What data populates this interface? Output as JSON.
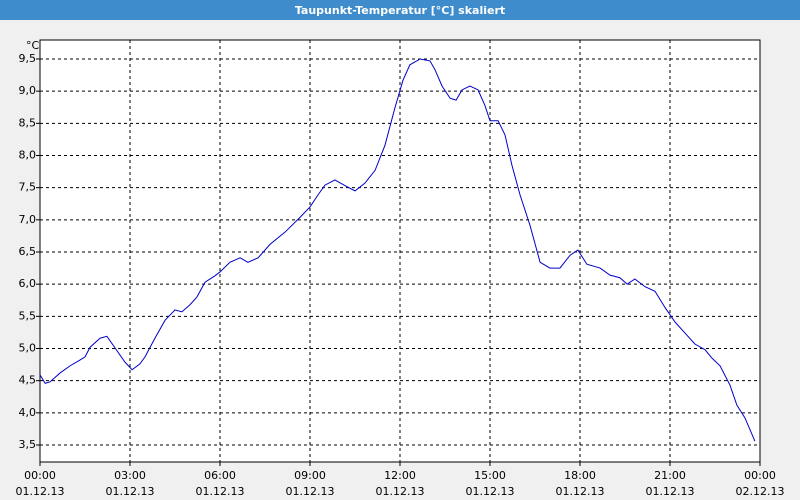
{
  "chart_data": {
    "type": "line",
    "title": "Taupunkt-Temperatur [°C] skaliert",
    "y_unit": "°C",
    "xlim": [
      0,
      24
    ],
    "ylim": [
      3.236,
      9.795
    ],
    "grid": true,
    "xticks": [
      {
        "value": 0,
        "label": "00:00"
      },
      {
        "value": 3,
        "label": "03:00"
      },
      {
        "value": 6,
        "label": "06:00"
      },
      {
        "value": 9,
        "label": "09:00"
      },
      {
        "value": 12,
        "label": "12:00"
      },
      {
        "value": 15,
        "label": "15:00"
      },
      {
        "value": 18,
        "label": "18:00"
      },
      {
        "value": 21,
        "label": "21:00"
      },
      {
        "value": 24,
        "label": "00:00"
      }
    ],
    "xtick_dates": [
      "01.12.13",
      "01.12.13",
      "01.12.13",
      "01.12.13",
      "01.12.13",
      "01.12.13",
      "01.12.13",
      "01.12.13",
      "02.12.13"
    ],
    "yticks": [
      {
        "value": 3.5,
        "label": "3,5"
      },
      {
        "value": 4,
        "label": "4,0"
      },
      {
        "value": 4.5,
        "label": "4,5"
      },
      {
        "value": 5,
        "label": "5,0"
      },
      {
        "value": 5.5,
        "label": "5,5"
      },
      {
        "value": 6,
        "label": "6,0"
      },
      {
        "value": 6.5,
        "label": "6,5"
      },
      {
        "value": 7,
        "label": "7,0"
      },
      {
        "value": 7.5,
        "label": "7,5"
      },
      {
        "value": 8,
        "label": "8,0"
      },
      {
        "value": 8.5,
        "label": "8,5"
      },
      {
        "value": 9,
        "label": "9,0"
      },
      {
        "value": 9.5,
        "label": "9,5"
      }
    ],
    "x": [
      0,
      0.17,
      0.33,
      0.67,
      1.0,
      1.33,
      1.5,
      1.67,
      2.0,
      2.23,
      2.5,
      2.83,
      3.07,
      3.33,
      3.5,
      3.83,
      4.17,
      4.5,
      4.73,
      5.0,
      5.23,
      5.5,
      5.83,
      6.0,
      6.33,
      6.67,
      6.93,
      7.27,
      7.67,
      8.17,
      8.67,
      9.0,
      9.27,
      9.5,
      9.83,
      10.17,
      10.5,
      10.83,
      11.17,
      11.5,
      11.83,
      12.1,
      12.33,
      12.67,
      13.0,
      13.17,
      13.4,
      13.67,
      13.87,
      14.07,
      14.33,
      14.6,
      14.83,
      15.0,
      15.27,
      15.5,
      15.73,
      16.0,
      16.33,
      16.67,
      17.0,
      17.33,
      17.67,
      17.93,
      18.23,
      18.67,
      19.0,
      19.33,
      19.57,
      19.83,
      20.17,
      20.5,
      20.83,
      21.17,
      21.5,
      21.83,
      22.17,
      22.4,
      22.67,
      23.0,
      23.23,
      23.5,
      23.83
    ],
    "series": [
      {
        "color": "#0000c8",
        "values": [
          4.59,
          4.46,
          4.48,
          4.62,
          4.73,
          4.82,
          4.87,
          5.02,
          5.16,
          5.19,
          5.01,
          4.79,
          4.67,
          4.76,
          4.87,
          5.16,
          5.44,
          5.6,
          5.57,
          5.68,
          5.8,
          6.03,
          6.13,
          6.19,
          6.34,
          6.41,
          6.34,
          6.41,
          6.62,
          6.81,
          7.04,
          7.2,
          7.39,
          7.54,
          7.62,
          7.53,
          7.45,
          7.57,
          7.77,
          8.16,
          8.74,
          9.17,
          9.41,
          9.5,
          9.47,
          9.33,
          9.08,
          8.89,
          8.86,
          9.02,
          9.08,
          9.02,
          8.78,
          8.54,
          8.54,
          8.32,
          7.85,
          7.39,
          6.92,
          6.34,
          6.25,
          6.25,
          6.45,
          6.53,
          6.31,
          6.25,
          6.14,
          6.1,
          6.0,
          6.08,
          5.96,
          5.89,
          5.64,
          5.41,
          5.24,
          5.07,
          4.98,
          4.85,
          4.73,
          4.43,
          4.12,
          3.92,
          3.56
        ]
      }
    ]
  }
}
